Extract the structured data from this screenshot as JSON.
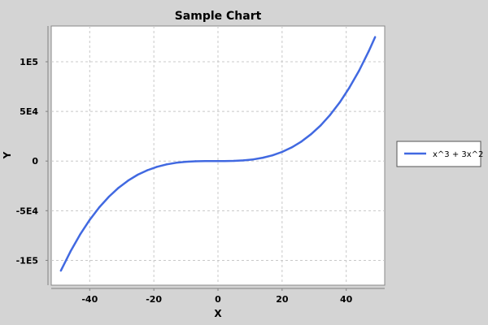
{
  "chart_data": {
    "type": "line",
    "title": "Sample Chart",
    "xlabel": "X",
    "ylabel": "Y",
    "xlim": [
      -52,
      52
    ],
    "ylim": [
      -125000,
      136000
    ],
    "x_ticks": [
      -40,
      -20,
      0,
      20,
      40
    ],
    "y_ticks": [
      {
        "value": -100000,
        "label": "-1E5"
      },
      {
        "value": -50000,
        "label": "-5E4"
      },
      {
        "value": 0,
        "label": "0"
      },
      {
        "value": 50000,
        "label": "5E4"
      },
      {
        "value": 100000,
        "label": "1E5"
      }
    ],
    "grid": true,
    "legend_position": "right",
    "series": [
      {
        "name": "x^3 + 3x^2",
        "color": "#4169e1",
        "x": [
          -49,
          -46,
          -43,
          -40,
          -37,
          -34,
          -31,
          -28,
          -25,
          -22,
          -19,
          -16,
          -13,
          -10,
          -7,
          -4,
          -1,
          2,
          5,
          8,
          11,
          14,
          17,
          20,
          23,
          26,
          29,
          32,
          35,
          38,
          41,
          44,
          47,
          49
        ],
        "y": [
          -110446,
          -90988,
          -73960,
          -59200,
          -46546,
          -35836,
          -26908,
          -19600,
          -13750,
          -9196,
          -5776,
          -3328,
          -1690,
          -700,
          -196,
          -16,
          2,
          20,
          200,
          704,
          1694,
          3332,
          5780,
          9200,
          13754,
          19604,
          26912,
          35840,
          46550,
          59204,
          73964,
          90992,
          110450,
          124852
        ]
      }
    ]
  }
}
